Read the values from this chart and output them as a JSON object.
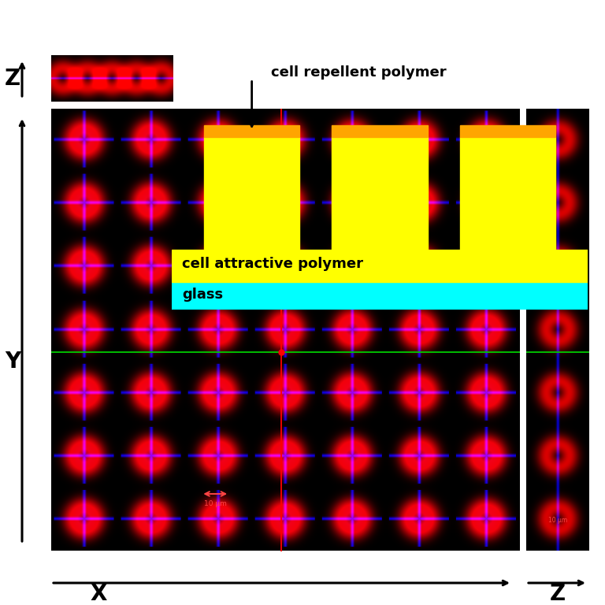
{
  "fig_width": 7.68,
  "fig_height": 7.68,
  "fig_dpi": 100,
  "fig_bg": "#ffffff",
  "diagram_bg": "#c8c8c8",
  "pillar_color": "#ffff00",
  "orange_color": "#ffa500",
  "glass_color": "#00ffff",
  "label_repellent": "cell repellent polymer",
  "label_attractive": "cell attractive polymer",
  "label_glass": "glass",
  "x_label": "X",
  "y_label": "Y",
  "z_label": "Z",
  "z_right_label": "Z"
}
